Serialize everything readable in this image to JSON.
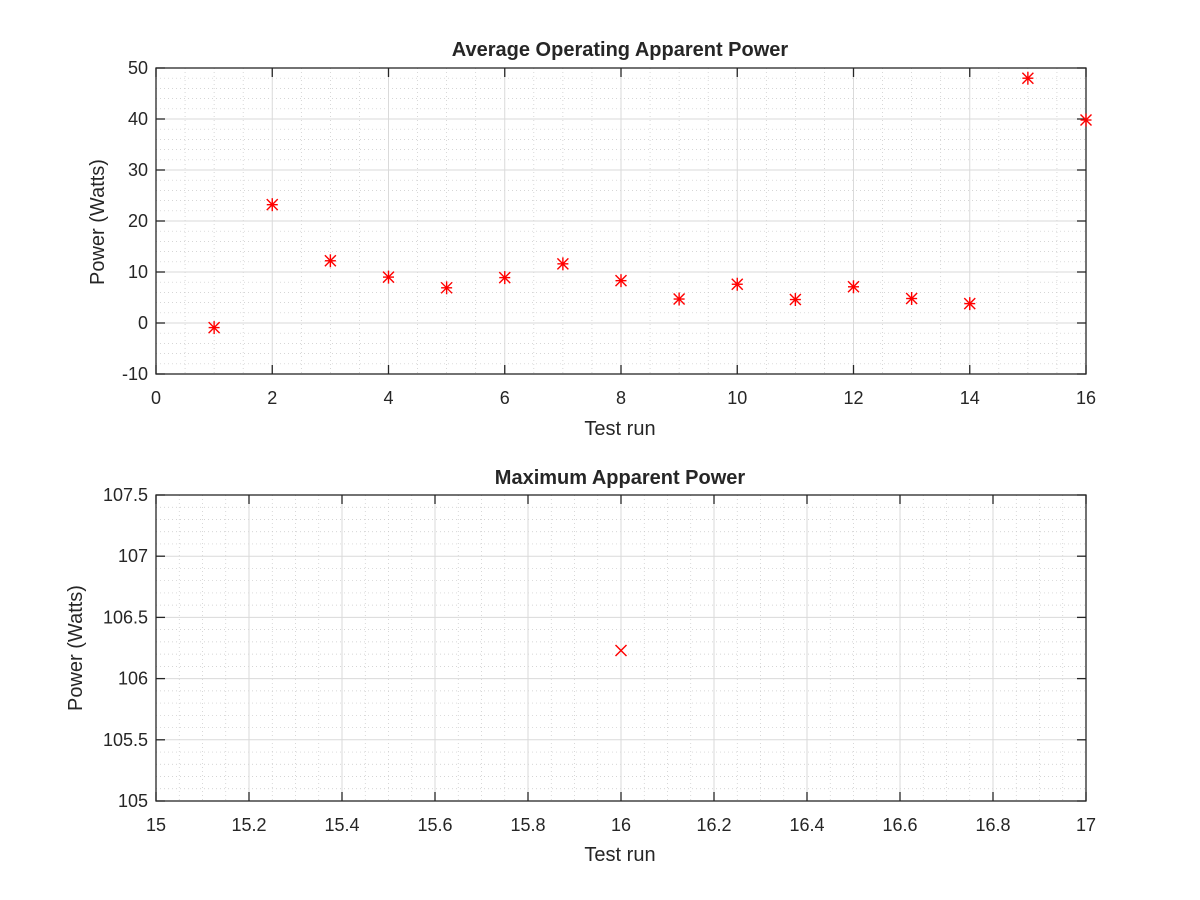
{
  "chart_data": [
    {
      "type": "scatter",
      "title": "Average Operating Apparent Power",
      "xlabel": "Test run",
      "ylabel": "Power (Watts)",
      "xlim": [
        0,
        16
      ],
      "ylim": [
        -10,
        50
      ],
      "xticks": [
        0,
        2,
        4,
        6,
        8,
        10,
        12,
        14,
        16
      ],
      "yticks": [
        -10,
        0,
        10,
        20,
        30,
        40,
        50
      ],
      "xtick_labels": [
        "0",
        "2",
        "4",
        "6",
        "8",
        "10",
        "12",
        "14",
        "16"
      ],
      "ytick_labels": [
        "-10",
        "0",
        "10",
        "20",
        "30",
        "40",
        "50"
      ],
      "grid": true,
      "minor_grid": true,
      "marker": "star",
      "color": "#ff0000",
      "x": [
        1,
        2,
        3,
        4,
        5,
        6,
        7,
        8,
        9,
        10,
        11,
        12,
        13,
        14,
        15,
        16
      ],
      "y": [
        -0.9,
        23.2,
        12.2,
        9.0,
        6.9,
        8.9,
        11.6,
        8.3,
        4.7,
        7.6,
        4.6,
        7.1,
        4.8,
        3.8,
        48.0,
        39.8
      ]
    },
    {
      "type": "scatter",
      "title": "Maximum Apparent Power",
      "xlabel": "Test run",
      "ylabel": "Power (Watts)",
      "xlim": [
        15,
        17
      ],
      "ylim": [
        105,
        107.5
      ],
      "xticks": [
        15,
        15.2,
        15.4,
        15.6,
        15.8,
        16,
        16.2,
        16.4,
        16.6,
        16.8,
        17
      ],
      "yticks": [
        105,
        105.5,
        106,
        106.5,
        107,
        107.5
      ],
      "xtick_labels": [
        "15",
        "15.2",
        "15.4",
        "15.6",
        "15.8",
        "16",
        "16.2",
        "16.4",
        "16.6",
        "16.8",
        "17"
      ],
      "ytick_labels": [
        "105",
        "105.5",
        "106",
        "106.5",
        "107",
        "107.5"
      ],
      "grid": true,
      "minor_grid": true,
      "marker": "x",
      "color": "#ff0000",
      "x": [
        16
      ],
      "y": [
        106.23
      ]
    }
  ]
}
